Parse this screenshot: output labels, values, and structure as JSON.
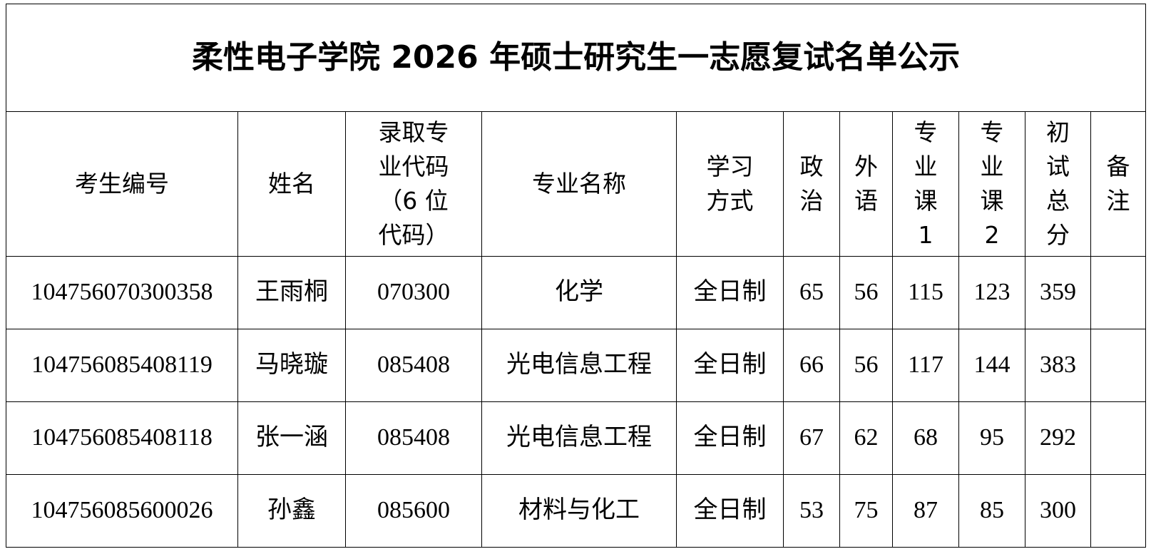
{
  "header": {
    "title": "柔性电子学院 2026 年硕士研究生一志愿复试名单公示"
  },
  "table": {
    "columns": [
      "考生编号",
      "姓名",
      "录取专业代码（6 位代码）",
      "专业名称",
      "学习方式",
      "政治",
      "外语",
      "专业课1",
      "专业课2",
      "初试总分",
      "备注"
    ],
    "rows": [
      [
        "104756070300358",
        "王雨桐",
        "070300",
        "化学",
        "全日制",
        65,
        56,
        115,
        123,
        359
      ],
      [
        "104756085408119",
        "马晓璇",
        "085408",
        "光电信息工程",
        "全日制",
        66,
        56,
        117,
        144,
        383
      ],
      [
        "104756085408118",
        "张一涵",
        "085408",
        "光电信息工程",
        "全日制",
        67,
        62,
        68,
        95,
        292
      ],
      [
        "104756085600026",
        "孙鑫",
        "085600",
        "材料与化工",
        "全日制",
        53,
        75,
        87,
        85,
        300
      ]
    ]
  }
}
